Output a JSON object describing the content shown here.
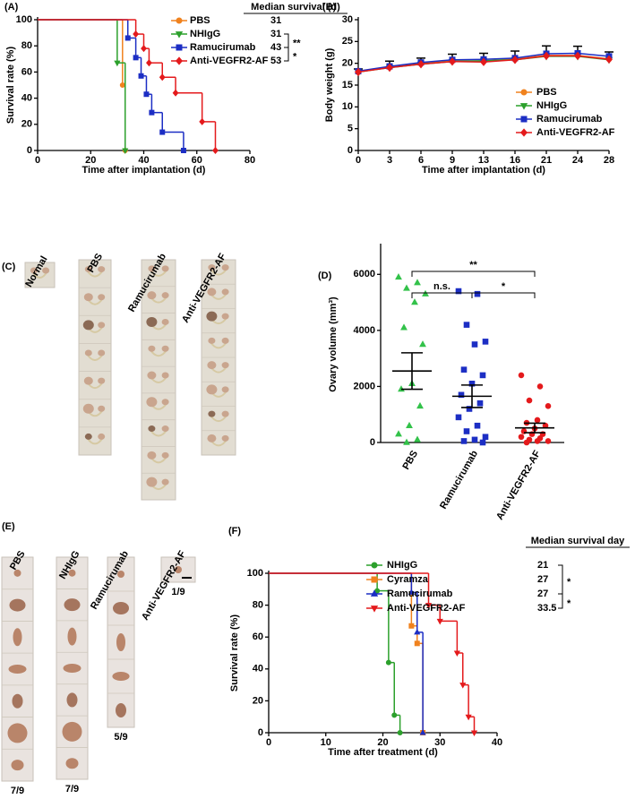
{
  "chart_data": [
    {
      "type": "survival",
      "panel_label": "(A)",
      "x_label": "Time after implantation (d)",
      "y_label": "Survival rate (%)",
      "legend_header": "Median survival (d)",
      "xlim": [
        0,
        80
      ],
      "xticks": [
        0,
        20,
        40,
        60,
        80
      ],
      "ylim": [
        0,
        100
      ],
      "yticks": [
        0,
        20,
        40,
        60,
        80,
        100
      ],
      "series": [
        {
          "name": "PBS",
          "color": "#f0821e",
          "marker": "circle",
          "median": 31,
          "x": [
            0,
            32,
            33
          ],
          "values": [
            100,
            50,
            0
          ]
        },
        {
          "name": "NHIgG",
          "color": "#2ca02c",
          "marker": "triangle-down",
          "median": 31,
          "x": [
            0,
            30,
            33
          ],
          "values": [
            100,
            67,
            0
          ]
        },
        {
          "name": "Ramucirumab",
          "color": "#1c2ec4",
          "marker": "square",
          "median": 43,
          "x": [
            0,
            34,
            37,
            39,
            41,
            43,
            47,
            55
          ],
          "values": [
            100,
            86,
            71,
            57,
            43,
            29,
            14,
            0
          ]
        },
        {
          "name": "Anti-VEGFR2-AF",
          "color": "#e41a1c",
          "marker": "diamond",
          "median": 53,
          "x": [
            0,
            37,
            40,
            42,
            47,
            52,
            62,
            67
          ],
          "values": [
            100,
            89,
            78,
            67,
            56,
            44,
            22,
            0
          ]
        }
      ],
      "significance": [
        {
          "between": [
            "NHIgG",
            "Ramucirumab"
          ],
          "label": "**"
        },
        {
          "between": [
            "Ramucirumab",
            "Anti-VEGFR2-AF"
          ],
          "label": "*"
        }
      ]
    },
    {
      "type": "line",
      "panel_label": "(B)",
      "x_label": "Time after implantation (d)",
      "y_label": "Body weight (g)",
      "legend": "lower right",
      "categories": [
        0,
        3,
        6,
        9,
        13,
        16,
        21,
        24,
        28
      ],
      "ylim": [
        0,
        30
      ],
      "yticks": [
        0,
        5,
        10,
        15,
        20,
        25,
        30
      ],
      "error_color": "#000000",
      "series": [
        {
          "name": "PBS",
          "color": "#f0821e",
          "marker": "circle",
          "values": [
            18,
            19.2,
            20,
            20.6,
            20.5,
            21,
            21.8,
            21.8,
            21
          ]
        },
        {
          "name": "NHIgG",
          "color": "#2ca02c",
          "marker": "triangle-down",
          "values": [
            18,
            19,
            19.8,
            20.4,
            20.6,
            20.8,
            21.6,
            21.6,
            20.8
          ]
        },
        {
          "name": "Ramucirumab",
          "color": "#1c2ec4",
          "marker": "square",
          "values": [
            18.2,
            19.3,
            20.2,
            20.8,
            20.9,
            21.2,
            22.2,
            22.3,
            21.6
          ],
          "errors": [
            0.5,
            1.2,
            1,
            1.3,
            1.4,
            1.6,
            1.8,
            1.6,
            1
          ]
        },
        {
          "name": "Anti-VEGFR2-AF",
          "color": "#e41a1c",
          "marker": "diamond",
          "values": [
            18,
            19,
            19.8,
            20.4,
            20.3,
            20.8,
            21.7,
            21.7,
            20.9
          ]
        }
      ]
    },
    {
      "type": "dot",
      "panel_label": "(D)",
      "y_label": "Ovary volume (mm³)",
      "ylim": [
        0,
        7000
      ],
      "yticks": [
        0,
        2000,
        4000,
        6000
      ],
      "series": [
        {
          "name": "PBS",
          "color": "#33c24a",
          "marker": "triangle",
          "mean": 2550,
          "sem": 650,
          "values": [
            5900,
            5700,
            5500,
            5300,
            5000,
            4100,
            3500,
            2100,
            1900,
            1300,
            600,
            300,
            100,
            0
          ]
        },
        {
          "name": "Ramucirumab",
          "color": "#1c2ec4",
          "marker": "square",
          "mean": 1650,
          "sem": 400,
          "values": [
            5400,
            5300,
            4200,
            3600,
            3500,
            2600,
            2400,
            2100,
            1700,
            1400,
            1200,
            900,
            600,
            400,
            200,
            100,
            50,
            0
          ]
        },
        {
          "name": "Anti-VEGFR2-AF",
          "color": "#e41a1c",
          "marker": "circle",
          "mean": 520,
          "sem": 170,
          "values": [
            2400,
            2000,
            1500,
            1300,
            800,
            700,
            600,
            500,
            400,
            300,
            300,
            200,
            150,
            100,
            50,
            50,
            0
          ]
        }
      ],
      "significance": [
        {
          "between": [
            "PBS",
            "Anti-VEGFR2-AF"
          ],
          "label": "**"
        },
        {
          "between": [
            "PBS",
            "Ramucirumab"
          ],
          "label": "n.s."
        },
        {
          "between": [
            "Ramucirumab",
            "Anti-VEGFR2-AF"
          ],
          "label": "*"
        }
      ]
    },
    {
      "type": "survival",
      "panel_label": "(F)",
      "x_label": "Time after treatment (d)",
      "y_label": "Survival rate (%)",
      "legend_header": "Median survival day",
      "xlim": [
        0,
        40
      ],
      "xticks": [
        0,
        10,
        20,
        30,
        40
      ],
      "ylim": [
        0,
        100
      ],
      "yticks": [
        0,
        20,
        40,
        60,
        80,
        100
      ],
      "series": [
        {
          "name": "NHIgG",
          "color": "#2ca02c",
          "marker": "circle",
          "median": 21,
          "x": [
            0,
            19,
            21,
            22,
            23
          ],
          "values": [
            100,
            89,
            44,
            11,
            0
          ]
        },
        {
          "name": "Cyramza",
          "color": "#f0821e",
          "marker": "square",
          "median": 27,
          "x": [
            0,
            25,
            26,
            27
          ],
          "values": [
            100,
            67,
            56,
            0
          ]
        },
        {
          "name": "Ramucirumab",
          "color": "#1c2ec4",
          "marker": "triangle",
          "median": 27,
          "x": [
            0,
            25,
            26,
            27
          ],
          "values": [
            100,
            88,
            63,
            0
          ]
        },
        {
          "name": "Anti-VEGFR2-AF",
          "color": "#e41a1c",
          "marker": "triangle-down",
          "median": 33.5,
          "x": [
            0,
            28,
            30,
            33,
            34,
            35,
            36
          ],
          "values": [
            100,
            80,
            70,
            50,
            30,
            10,
            0
          ]
        }
      ],
      "significance": [
        {
          "between": [
            "NHIgG",
            "Ramucirumab"
          ],
          "label": "*"
        },
        {
          "between": [
            "Ramucirumab",
            "Anti-VEGFR2-AF"
          ],
          "label": "*"
        }
      ]
    }
  ],
  "photo_panels": [
    {
      "panel_label": "(C)",
      "columns": [
        {
          "label": "Normal"
        },
        {
          "label": "PBS"
        },
        {
          "label": "Ramucirumab"
        },
        {
          "label": "Anti-VEGFR2-AF"
        }
      ]
    },
    {
      "panel_label": "(E)",
      "columns": [
        {
          "label": "PBS",
          "count": "7/9"
        },
        {
          "label": "NHIgG",
          "count": "7/9"
        },
        {
          "label": "Ramucirumab",
          "count": "5/9"
        },
        {
          "label": "Anti-VEGFR2-AF",
          "count": "1/9"
        }
      ]
    }
  ]
}
